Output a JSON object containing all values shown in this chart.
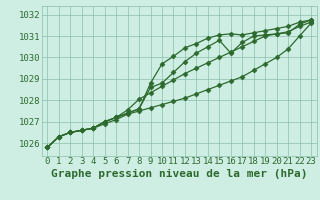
{
  "title": "Graphe pression niveau de la mer (hPa)",
  "hours": [
    0,
    1,
    2,
    3,
    4,
    5,
    6,
    7,
    8,
    9,
    10,
    11,
    12,
    13,
    14,
    15,
    16,
    17,
    18,
    19,
    20,
    21,
    22,
    23
  ],
  "series": [
    [
      1025.8,
      1026.3,
      1026.5,
      1026.6,
      1026.7,
      1026.9,
      1027.1,
      1027.35,
      1027.5,
      1027.65,
      1027.8,
      1027.95,
      1028.1,
      1028.3,
      1028.5,
      1028.7,
      1028.9,
      1029.1,
      1029.4,
      1029.7,
      1030.0,
      1030.4,
      1031.0,
      1031.6
    ],
    [
      1025.8,
      1026.3,
      1026.5,
      1026.6,
      1026.7,
      1027.0,
      1027.2,
      1027.55,
      1028.05,
      1028.35,
      1028.65,
      1028.95,
      1029.25,
      1029.5,
      1029.75,
      1030.0,
      1030.25,
      1030.5,
      1030.75,
      1031.0,
      1031.1,
      1031.2,
      1031.45,
      1031.65
    ],
    [
      1025.8,
      1026.3,
      1026.5,
      1026.6,
      1026.7,
      1027.0,
      1027.2,
      1027.4,
      1027.6,
      1028.8,
      1029.7,
      1030.05,
      1030.45,
      1030.65,
      1030.9,
      1031.05,
      1031.1,
      1031.05,
      1031.15,
      1031.25,
      1031.35,
      1031.45,
      1031.65,
      1031.75
    ],
    [
      1025.8,
      1026.3,
      1026.5,
      1026.6,
      1026.7,
      1027.0,
      1027.2,
      1027.4,
      1027.6,
      1028.6,
      1028.8,
      1029.3,
      1029.8,
      1030.2,
      1030.5,
      1030.8,
      1030.2,
      1030.7,
      1031.0,
      1031.05,
      1031.1,
      1031.15,
      1031.55,
      1031.75
    ]
  ],
  "line_color": "#2d6a2d",
  "marker": "D",
  "markersize": 2.5,
  "linewidth": 0.9,
  "bg_color": "#ceeee4",
  "grid_color": "#8bbfaa",
  "ylim": [
    1025.4,
    1032.4
  ],
  "yticks": [
    1026,
    1027,
    1028,
    1029,
    1030,
    1031,
    1032
  ],
  "title_fontsize": 8,
  "tick_fontsize": 6.5
}
